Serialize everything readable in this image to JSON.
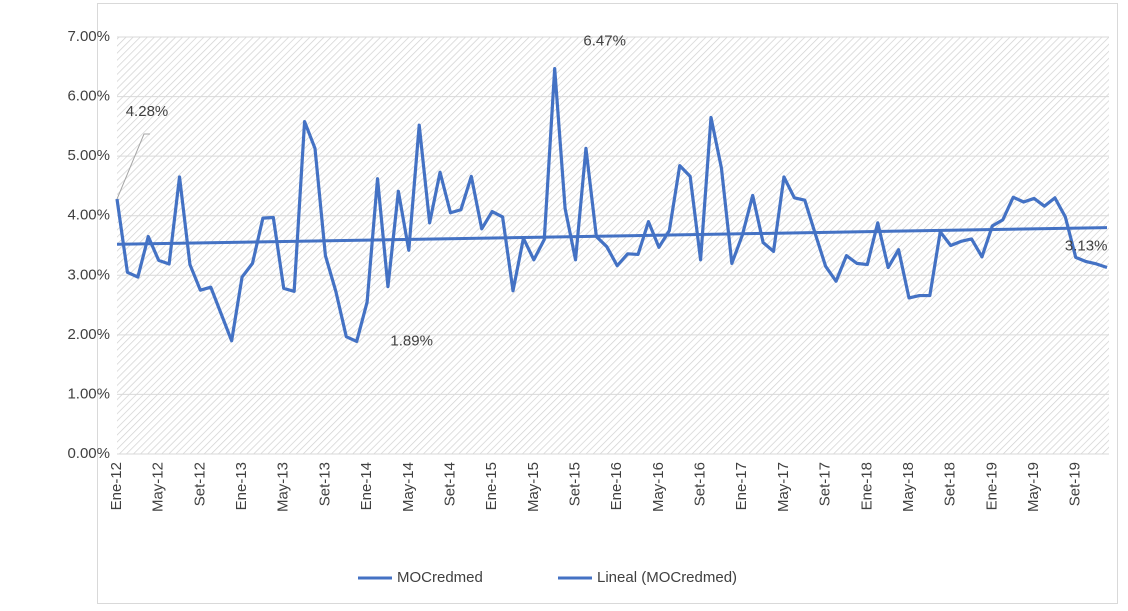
{
  "chart_data": {
    "type": "line",
    "categories": [
      "Ene-12",
      null,
      null,
      null,
      "May-12",
      null,
      null,
      null,
      "Set-12",
      null,
      null,
      null,
      "Ene-13",
      null,
      null,
      null,
      "May-13",
      null,
      null,
      null,
      "Set-13",
      null,
      null,
      null,
      "Ene-14",
      null,
      null,
      null,
      "May-14",
      null,
      null,
      null,
      "Set-14",
      null,
      null,
      null,
      "Ene-15",
      null,
      null,
      null,
      "May-15",
      null,
      null,
      null,
      "Set-15",
      null,
      null,
      null,
      "Ene-16",
      null,
      null,
      null,
      "May-16",
      null,
      null,
      null,
      "Set-16",
      null,
      null,
      null,
      "Ene-17",
      null,
      null,
      null,
      "May-17",
      null,
      null,
      null,
      "Set-17",
      null,
      null,
      null,
      "Ene-18",
      null,
      null,
      null,
      "May-18",
      null,
      null,
      null,
      "Set-18",
      null,
      null,
      null,
      "Ene-19",
      null,
      null,
      null,
      "May-19",
      null,
      null,
      null,
      "Set-19",
      null,
      null,
      null
    ],
    "series": [
      {
        "name": "MOCredmed",
        "color": "#4472c4",
        "values": [
          4.28,
          3.05,
          2.97,
          3.65,
          3.25,
          3.19,
          4.65,
          3.18,
          2.75,
          2.8,
          2.35,
          1.9,
          2.97,
          3.2,
          3.96,
          3.97,
          2.78,
          2.73,
          5.58,
          5.13,
          3.33,
          2.73,
          1.97,
          1.89,
          2.55,
          4.62,
          2.81,
          4.41,
          3.42,
          5.52,
          3.88,
          4.73,
          4.05,
          4.1,
          4.66,
          3.78,
          4.07,
          3.98,
          2.74,
          3.62,
          3.26,
          3.6,
          6.47,
          4.12,
          3.26,
          5.13,
          3.65,
          3.48,
          3.16,
          3.36,
          3.35,
          3.9,
          3.47,
          3.75,
          4.84,
          4.66,
          3.26,
          5.65,
          4.8,
          3.2,
          3.67,
          4.34,
          3.55,
          3.4,
          4.65,
          4.3,
          4.26,
          3.7,
          3.15,
          2.9,
          3.33,
          3.2,
          3.18,
          3.88,
          3.13,
          3.43,
          2.62,
          2.66,
          2.66,
          3.73,
          3.5,
          3.57,
          3.61,
          3.31,
          3.83,
          3.93,
          4.31,
          4.23,
          4.29,
          4.16,
          4.3,
          3.98,
          3.3,
          3.23,
          3.19,
          3.13
        ],
        "value_labels": [
          "4.28%",
          null,
          null,
          null,
          null,
          null,
          null,
          null,
          null,
          null,
          null,
          null,
          null,
          null,
          null,
          null,
          null,
          null,
          null,
          null,
          null,
          null,
          null,
          "1.89%",
          null,
          null,
          null,
          null,
          null,
          null,
          null,
          null,
          null,
          null,
          null,
          null,
          null,
          null,
          null,
          null,
          null,
          null,
          "6.47%",
          null,
          null,
          null,
          null,
          null,
          null,
          null,
          null,
          null,
          null,
          null,
          null,
          null,
          null,
          null,
          null,
          null,
          null,
          null,
          null,
          null,
          null,
          null,
          null,
          null,
          null,
          null,
          null,
          null,
          null,
          null,
          null,
          null,
          null,
          null,
          null,
          null,
          null,
          null,
          null,
          null,
          null,
          null,
          null,
          null,
          null,
          null,
          null,
          null,
          null,
          "3.13%"
        ]
      }
    ],
    "trendline": {
      "name": "Lineal (MOCredmed)",
      "color": "#4472c4",
      "values": [
        3.52,
        3.8
      ]
    },
    "ylim": [
      0,
      7
    ],
    "yticks": [
      {
        "value": 0,
        "label": "0.00%"
      },
      {
        "value": 1,
        "label": "1.00%"
      },
      {
        "value": 2,
        "label": "2.00%"
      },
      {
        "value": 3,
        "label": "3.00%"
      },
      {
        "value": 4,
        "label": "4.00%"
      },
      {
        "value": 5,
        "label": "5.00%"
      },
      {
        "value": 6,
        "label": "6.00%"
      },
      {
        "value": 7,
        "label": "7.00%"
      }
    ],
    "grid": true,
    "legend": "bottom"
  }
}
